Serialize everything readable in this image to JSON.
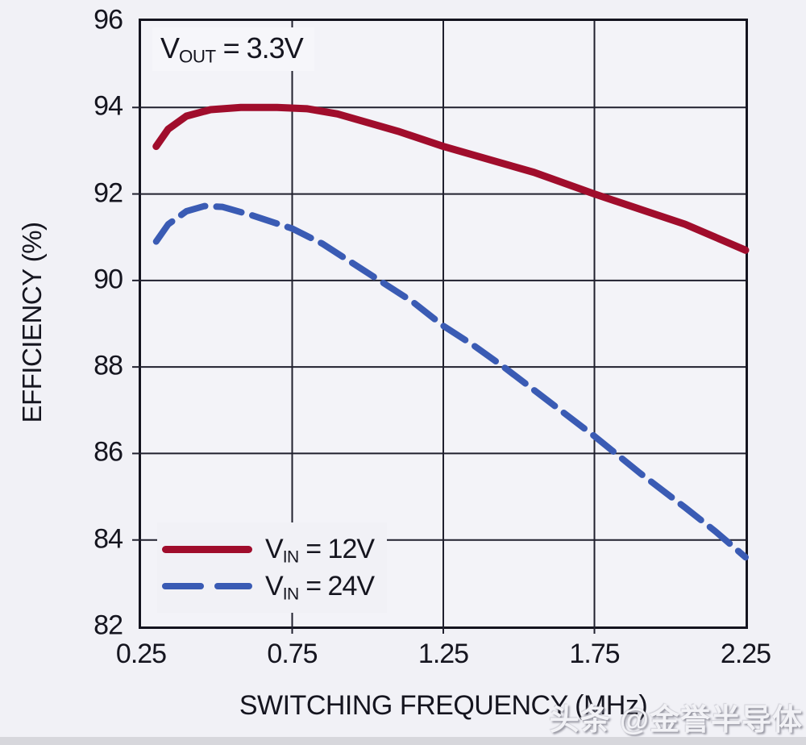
{
  "watermark": "头条 @金誉半导体",
  "colors": {
    "background": "#f1f1f6",
    "plot_background": "#f3f3f8",
    "grid": "#20202e",
    "border": "#14141f",
    "text": "#15151f",
    "series_12v": "#a00d2c",
    "series_24v": "#3a5bb4"
  },
  "chart_data": {
    "type": "line",
    "title": "",
    "xlabel": "SWITCHING FREQUENCY (MHz)",
    "ylabel": "EFFICIENCY (%)",
    "xlim": [
      0.25,
      2.25
    ],
    "ylim": [
      82,
      96
    ],
    "grid": true,
    "legend_position": "lower left",
    "x_ticks": [
      0.25,
      0.75,
      1.25,
      1.75,
      2.25
    ],
    "x_tick_labels": [
      "0.25",
      "0.75",
      "1.25",
      "1.75",
      "2.25"
    ],
    "y_ticks": [
      96,
      94,
      92,
      90,
      88,
      86,
      84,
      82
    ],
    "y_tick_labels": [
      "96",
      "94",
      "92",
      "90",
      "88",
      "86",
      "84",
      "82"
    ],
    "annotation": {
      "prefix": "V",
      "sub": "OUT",
      "rest": " = 3.3V"
    },
    "series": [
      {
        "label_prefix": "V",
        "label_sub": "IN",
        "label_rest": " = 12V",
        "color": "#a00d2c",
        "style": "solid",
        "points": [
          [
            0.3,
            93.1
          ],
          [
            0.34,
            93.5
          ],
          [
            0.4,
            93.8
          ],
          [
            0.48,
            93.95
          ],
          [
            0.58,
            94.0
          ],
          [
            0.7,
            94.0
          ],
          [
            0.8,
            93.97
          ],
          [
            0.9,
            93.85
          ],
          [
            1.0,
            93.65
          ],
          [
            1.1,
            93.45
          ],
          [
            1.25,
            93.1
          ],
          [
            1.4,
            92.8
          ],
          [
            1.55,
            92.5
          ],
          [
            1.75,
            92.0
          ],
          [
            1.9,
            91.65
          ],
          [
            2.05,
            91.3
          ],
          [
            2.25,
            90.7
          ]
        ]
      },
      {
        "label_prefix": "V",
        "label_sub": "IN",
        "label_rest": " = 24V",
        "color": "#3a5bb4",
        "style": "dashed",
        "points": [
          [
            0.3,
            90.9
          ],
          [
            0.34,
            91.3
          ],
          [
            0.4,
            91.6
          ],
          [
            0.46,
            91.72
          ],
          [
            0.52,
            91.7
          ],
          [
            0.62,
            91.5
          ],
          [
            0.75,
            91.2
          ],
          [
            0.85,
            90.85
          ],
          [
            0.95,
            90.4
          ],
          [
            1.05,
            89.95
          ],
          [
            1.15,
            89.5
          ],
          [
            1.25,
            88.95
          ],
          [
            1.35,
            88.5
          ],
          [
            1.45,
            88.0
          ],
          [
            1.6,
            87.2
          ],
          [
            1.75,
            86.4
          ],
          [
            1.9,
            85.55
          ],
          [
            2.05,
            84.75
          ],
          [
            2.15,
            84.2
          ],
          [
            2.25,
            83.6
          ]
        ]
      }
    ]
  }
}
